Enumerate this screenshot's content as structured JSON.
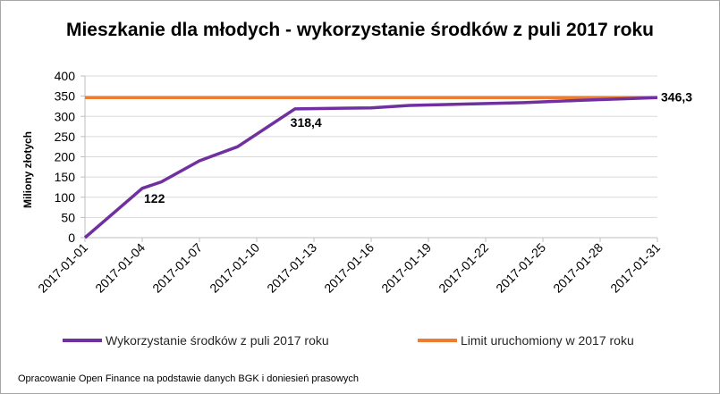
{
  "chart_data": {
    "type": "line",
    "title": "Mieszkanie dla młodych - wykorzystanie środków z puli 2017 roku",
    "ylabel": "Miliony złotych",
    "xlabel": "",
    "ylim": [
      0,
      400
    ],
    "yticks": [
      "0",
      "50",
      "100",
      "150",
      "200",
      "250",
      "300",
      "350",
      "400"
    ],
    "x_tick_labels": [
      "2017-01-01",
      "2017-01-04",
      "2017-01-07",
      "2017-01-10",
      "2017-01-13",
      "2017-01-16",
      "2017-01-19",
      "2017-01-22",
      "2017-01-25",
      "2017-01-28",
      "2017-01-31"
    ],
    "grid": true,
    "legend_position": "bottom",
    "series": [
      {
        "name": "Wykorzystanie środków z puli 2017 roku",
        "color": "#7030a0",
        "points": [
          {
            "x": "2017-01-01",
            "y": 0
          },
          {
            "x": "2017-01-04",
            "y": 122
          },
          {
            "x": "2017-01-05",
            "y": 138
          },
          {
            "x": "2017-01-07",
            "y": 190
          },
          {
            "x": "2017-01-09",
            "y": 225
          },
          {
            "x": "2017-01-12",
            "y": 318.4
          },
          {
            "x": "2017-01-16",
            "y": 321
          },
          {
            "x": "2017-01-18",
            "y": 327
          },
          {
            "x": "2017-01-24",
            "y": 334
          },
          {
            "x": "2017-01-27",
            "y": 340
          },
          {
            "x": "2017-01-31",
            "y": 346.3
          }
        ]
      },
      {
        "name": "Limit uruchomiony w 2017 roku",
        "color": "#ed7d31",
        "points": [
          {
            "x": "2017-01-01",
            "y": 346.3
          },
          {
            "x": "2017-01-31",
            "y": 346.3
          }
        ]
      }
    ],
    "annotations": [
      {
        "text": "122",
        "x": "2017-01-04",
        "y": 122
      },
      {
        "text": "318,4",
        "x": "2017-01-12",
        "y": 318.4
      },
      {
        "text": "346,3",
        "x": "2017-01-31",
        "y": 346.3
      }
    ]
  },
  "source_note": "Opracowanie Open Finance  na podstawie danych BGK i doniesień prasowych"
}
